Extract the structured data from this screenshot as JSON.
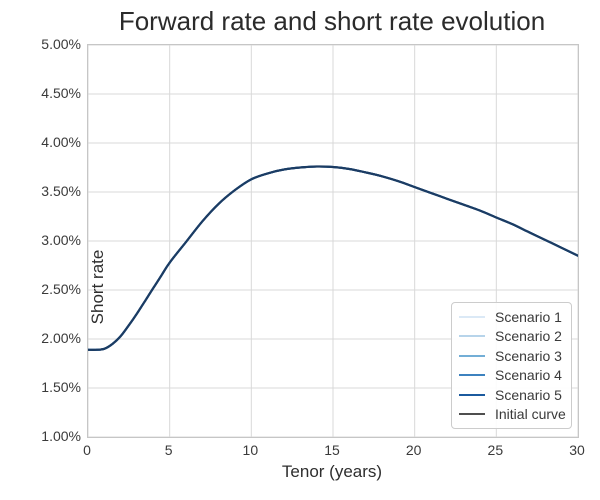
{
  "chart_data": {
    "type": "line",
    "title": "Forward rate and short rate evolution",
    "xlabel": "Tenor (years)",
    "ylabel": "Short rate",
    "xlim": [
      0,
      30
    ],
    "ylim": [
      1.0,
      5.0
    ],
    "y_unit": "percent",
    "grid": true,
    "legend_position": "lower right",
    "xticks": {
      "values": [
        0,
        5,
        10,
        15,
        20,
        25,
        30
      ],
      "labels": [
        "0",
        "5",
        "10",
        "15",
        "20",
        "25",
        "30"
      ]
    },
    "yticks": {
      "values": [
        1.0,
        1.5,
        2.0,
        2.5,
        3.0,
        3.5,
        4.0,
        4.5,
        5.0
      ],
      "labels": [
        "1.00%",
        "1.50%",
        "2.00%",
        "2.50%",
        "3.00%",
        "3.50%",
        "4.00%",
        "4.50%",
        "5.00%"
      ]
    },
    "x": [
      0,
      0.5,
      1,
      1.5,
      2,
      2.5,
      3,
      3.5,
      4,
      4.5,
      5,
      6,
      7,
      8,
      9,
      10,
      11,
      12,
      13,
      14,
      15,
      16,
      17,
      18,
      19,
      20,
      21,
      22,
      23,
      24,
      25,
      26,
      27,
      28,
      29,
      30
    ],
    "values_percent": [
      1.89,
      1.89,
      1.9,
      1.95,
      2.03,
      2.14,
      2.26,
      2.39,
      2.52,
      2.65,
      2.78,
      2.99,
      3.2,
      3.38,
      3.52,
      3.63,
      3.69,
      3.73,
      3.75,
      3.76,
      3.755,
      3.735,
      3.7,
      3.66,
      3.61,
      3.55,
      3.49,
      3.43,
      3.37,
      3.31,
      3.24,
      3.17,
      3.09,
      3.01,
      2.93,
      2.85
    ],
    "series": [
      {
        "name": "Initial curve",
        "color": "#4f4f4f"
      },
      {
        "name": "Scenario 1",
        "color": "#dbe9f6"
      },
      {
        "name": "Scenario 2",
        "color": "#b7d4ea"
      },
      {
        "name": "Scenario 3",
        "color": "#73aed6"
      },
      {
        "name": "Scenario 4",
        "color": "#3d82bf"
      },
      {
        "name": "Scenario 5",
        "color": "#1b5a9e"
      }
    ],
    "series_note": "All five scenario curves and the initial forward curve coincide exactly; a single dark navy curve is visible.",
    "visible_curve_color": "#1c3c63",
    "curve_linewidth": 2.2,
    "grid_color": "#d9d9d9",
    "spine_color": "#c6c6c6"
  },
  "legend": {
    "entries": [
      {
        "label": "Scenario 1",
        "color": "#dbe9f6"
      },
      {
        "label": "Scenario 2",
        "color": "#b7d4ea"
      },
      {
        "label": "Scenario 3",
        "color": "#73aed6"
      },
      {
        "label": "Scenario 4",
        "color": "#3d82bf"
      },
      {
        "label": "Scenario 5",
        "color": "#1b5a9e"
      },
      {
        "label": "Initial curve",
        "color": "#4f4f4f"
      }
    ]
  }
}
